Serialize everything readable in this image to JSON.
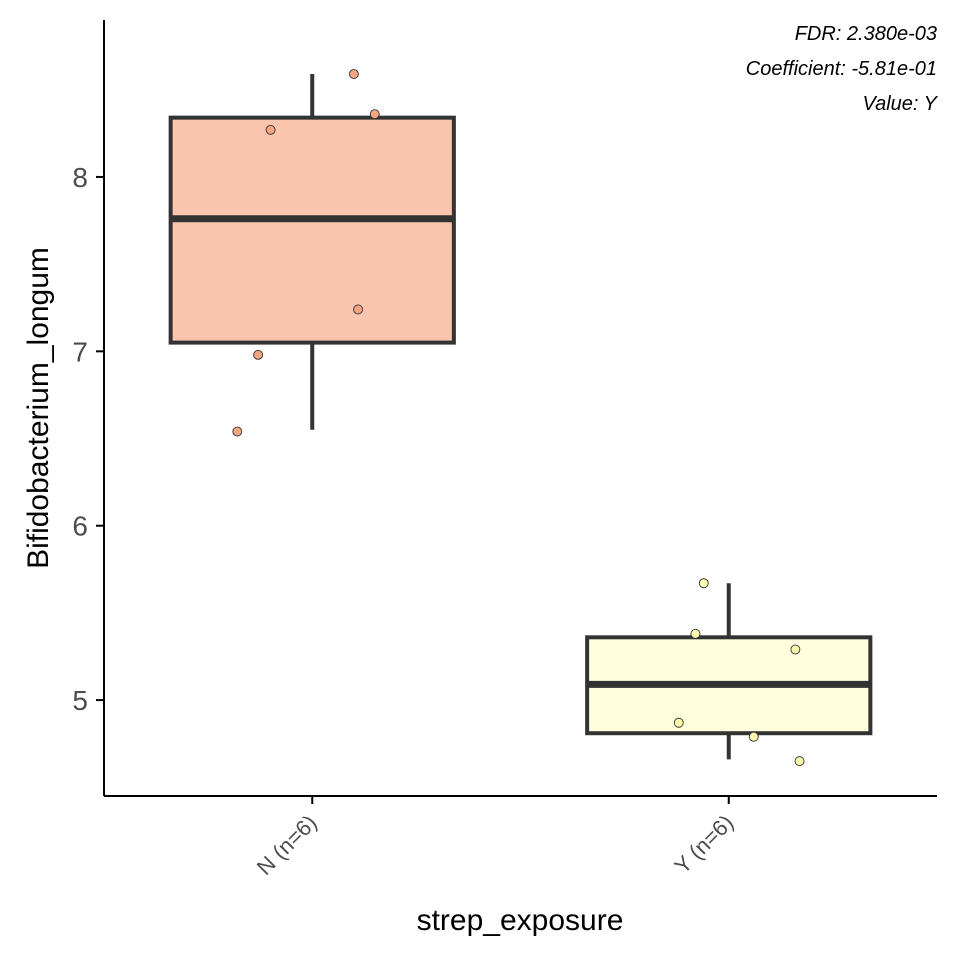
{
  "chart_data": {
    "type": "box",
    "xlabel": "strep_exposure",
    "ylabel": "Bifidobacterium_longum",
    "ylim": [
      4.45,
      8.9
    ],
    "yticks": [
      5,
      6,
      7,
      8
    ],
    "grid": false,
    "annotations": [
      "FDR: 2.380e-03",
      "Coefficient: -5.81e-01",
      "Value: Y"
    ],
    "categories": [
      "N (n=6)",
      "Y (n=6)"
    ],
    "groups": [
      {
        "category": "N (n=6)",
        "fill": "#fcc5ae",
        "point_color": "#f4a582",
        "whisker_low": 6.55,
        "q1": 7.05,
        "median": 7.76,
        "q3": 8.34,
        "whisker_high": 8.59,
        "points": [
          {
            "jitter": 0.1,
            "y": 8.59
          },
          {
            "jitter": -0.1,
            "y": 8.27
          },
          {
            "jitter": 0.15,
            "y": 8.36
          },
          {
            "jitter": 0.11,
            "y": 7.24
          },
          {
            "jitter": -0.13,
            "y": 6.98
          },
          {
            "jitter": -0.18,
            "y": 6.54
          }
        ]
      },
      {
        "category": "Y (n=6)",
        "fill": "#fffedd",
        "point_color": "#fdfbaf",
        "whisker_low": 4.66,
        "q1": 4.81,
        "median": 5.09,
        "q3": 5.36,
        "whisker_high": 5.67,
        "points": [
          {
            "jitter": -0.06,
            "y": 5.67
          },
          {
            "jitter": -0.08,
            "y": 5.38
          },
          {
            "jitter": 0.16,
            "y": 5.29
          },
          {
            "jitter": -0.12,
            "y": 4.87
          },
          {
            "jitter": 0.06,
            "y": 4.79
          },
          {
            "jitter": 0.17,
            "y": 4.65
          }
        ]
      }
    ]
  }
}
